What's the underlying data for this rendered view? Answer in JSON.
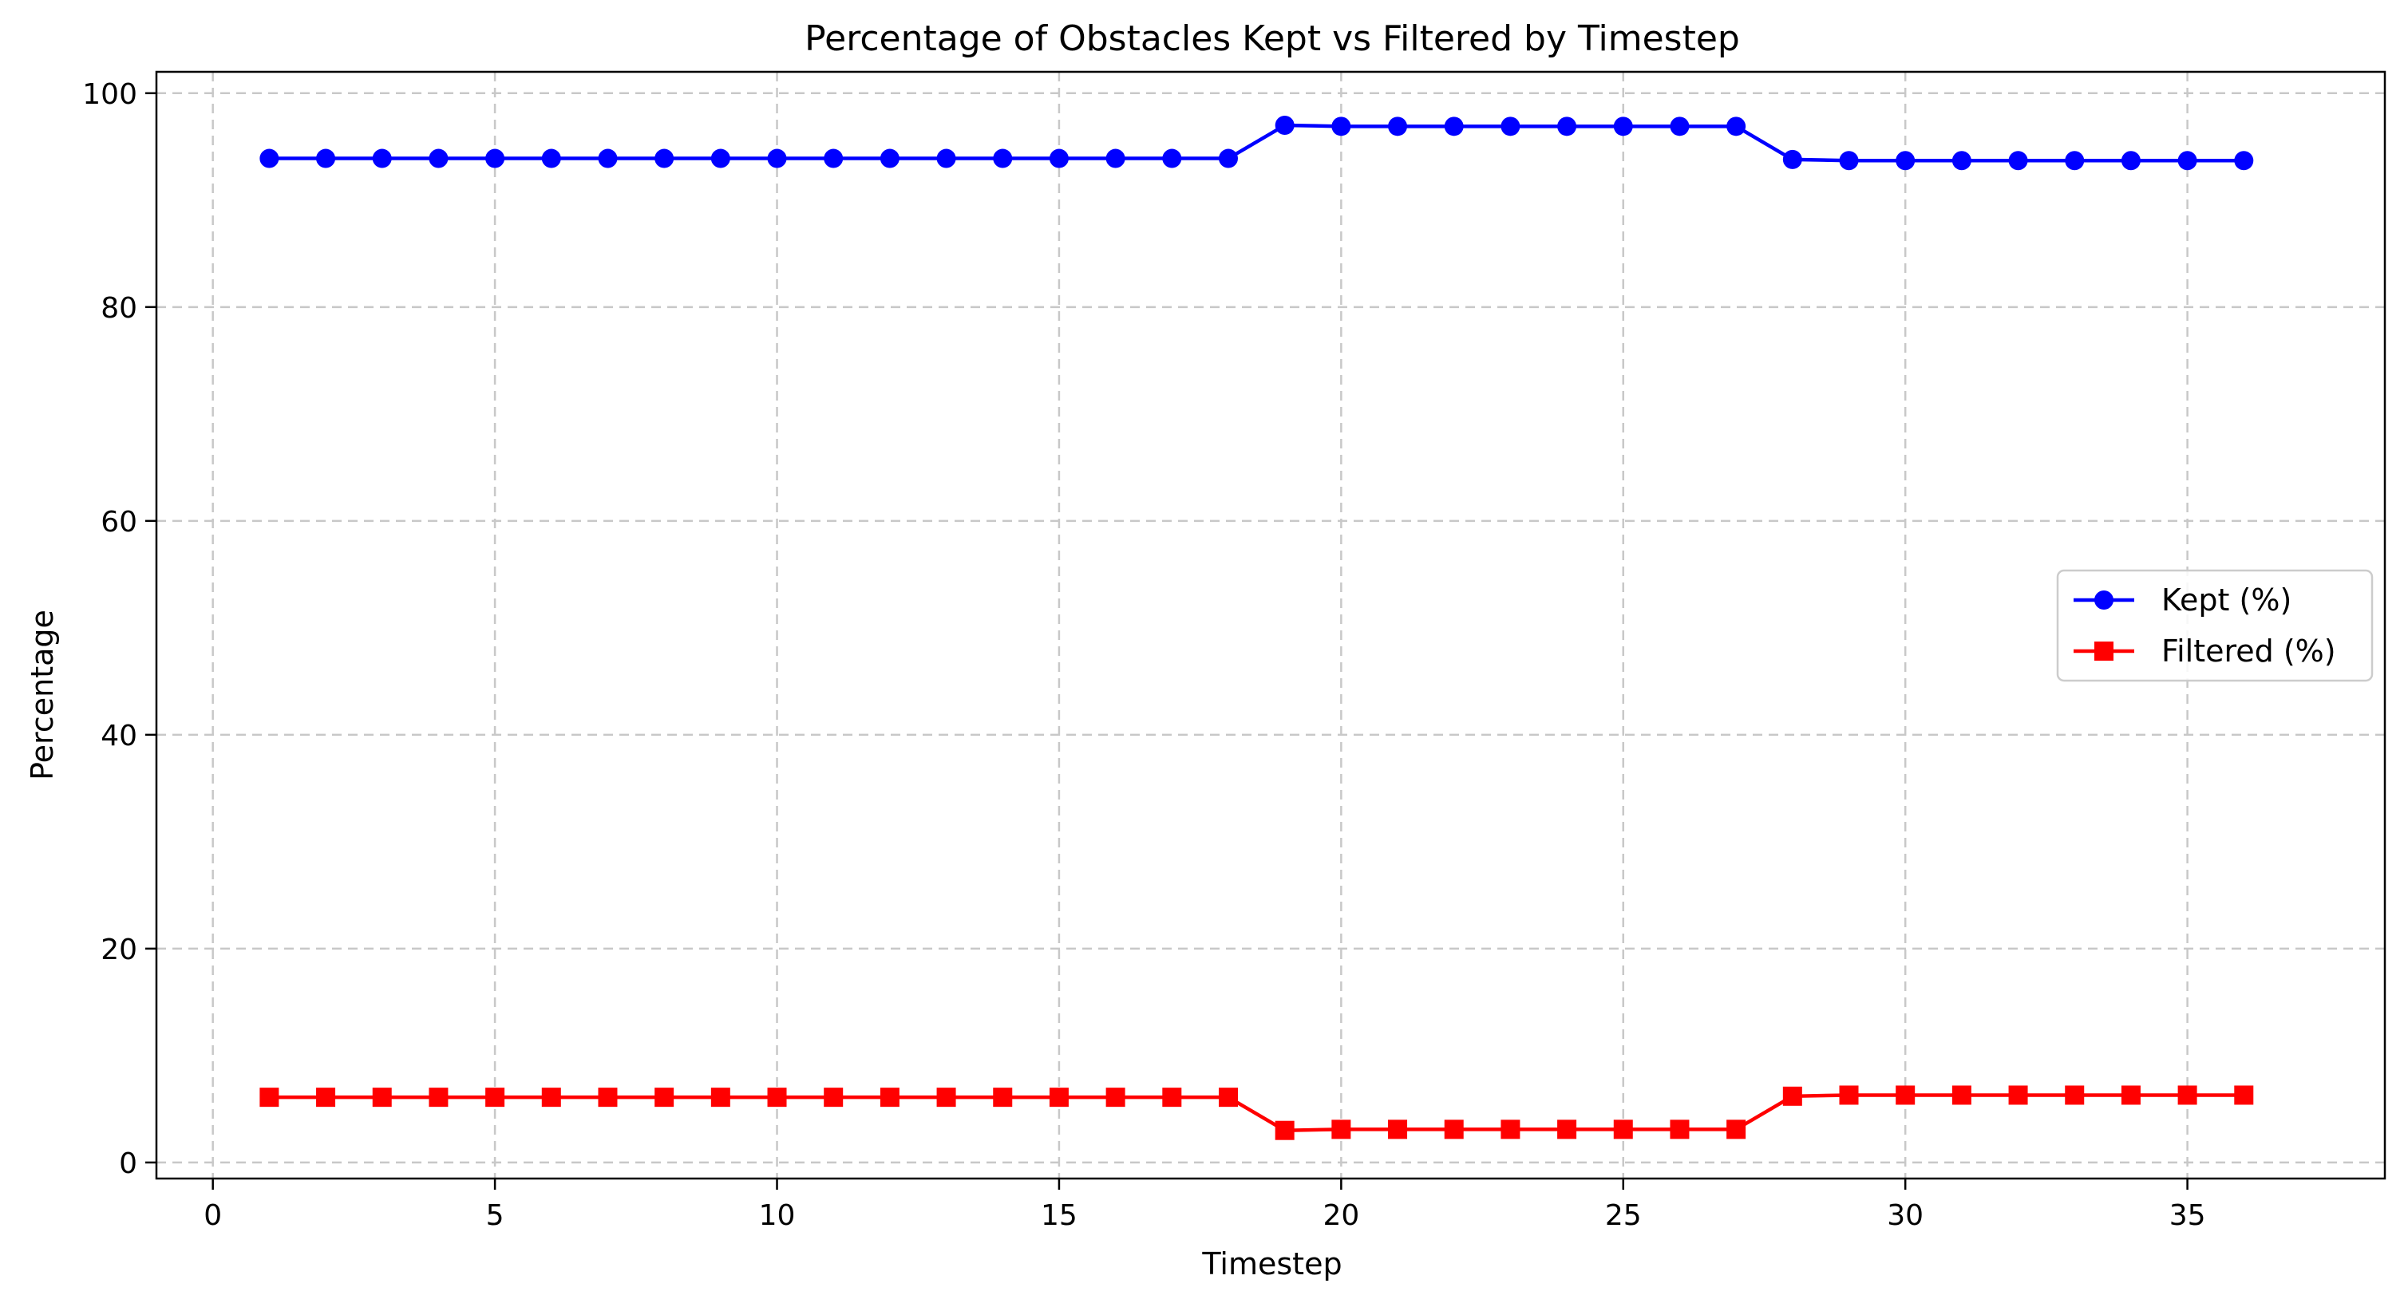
{
  "chart_data": {
    "type": "line",
    "title": "Percentage of Obstacles Kept vs Filtered by Timestep",
    "xlabel": "Timestep",
    "ylabel": "Percentage",
    "xlim": [
      -1,
      38.5
    ],
    "ylim": [
      -1.5,
      102
    ],
    "xticks": [
      0,
      5,
      10,
      15,
      20,
      25,
      30,
      35
    ],
    "yticks": [
      0,
      20,
      40,
      60,
      80,
      100
    ],
    "grid": true,
    "legend_position": "center-right",
    "x": [
      1,
      2,
      3,
      4,
      5,
      6,
      7,
      8,
      9,
      10,
      11,
      12,
      13,
      14,
      15,
      16,
      17,
      18,
      19,
      20,
      21,
      22,
      23,
      24,
      25,
      26,
      27,
      28,
      29,
      30,
      31,
      32,
      33,
      34,
      35,
      36
    ],
    "series": [
      {
        "name": "Kept (%)",
        "color": "#0000ff",
        "marker": "circle",
        "values": [
          93.9,
          93.9,
          93.9,
          93.9,
          93.9,
          93.9,
          93.9,
          93.9,
          93.9,
          93.9,
          93.9,
          93.9,
          93.9,
          93.9,
          93.9,
          93.9,
          93.9,
          93.9,
          97.0,
          96.9,
          96.9,
          96.9,
          96.9,
          96.9,
          96.9,
          96.9,
          96.9,
          93.8,
          93.7,
          93.7,
          93.7,
          93.7,
          93.7,
          93.7,
          93.7,
          93.7
        ]
      },
      {
        "name": "Filtered (%)",
        "color": "#ff0000",
        "marker": "square",
        "values": [
          6.1,
          6.1,
          6.1,
          6.1,
          6.1,
          6.1,
          6.1,
          6.1,
          6.1,
          6.1,
          6.1,
          6.1,
          6.1,
          6.1,
          6.1,
          6.1,
          6.1,
          6.1,
          3.0,
          3.1,
          3.1,
          3.1,
          3.1,
          3.1,
          3.1,
          3.1,
          3.1,
          6.2,
          6.3,
          6.3,
          6.3,
          6.3,
          6.3,
          6.3,
          6.3,
          6.3
        ]
      }
    ]
  }
}
